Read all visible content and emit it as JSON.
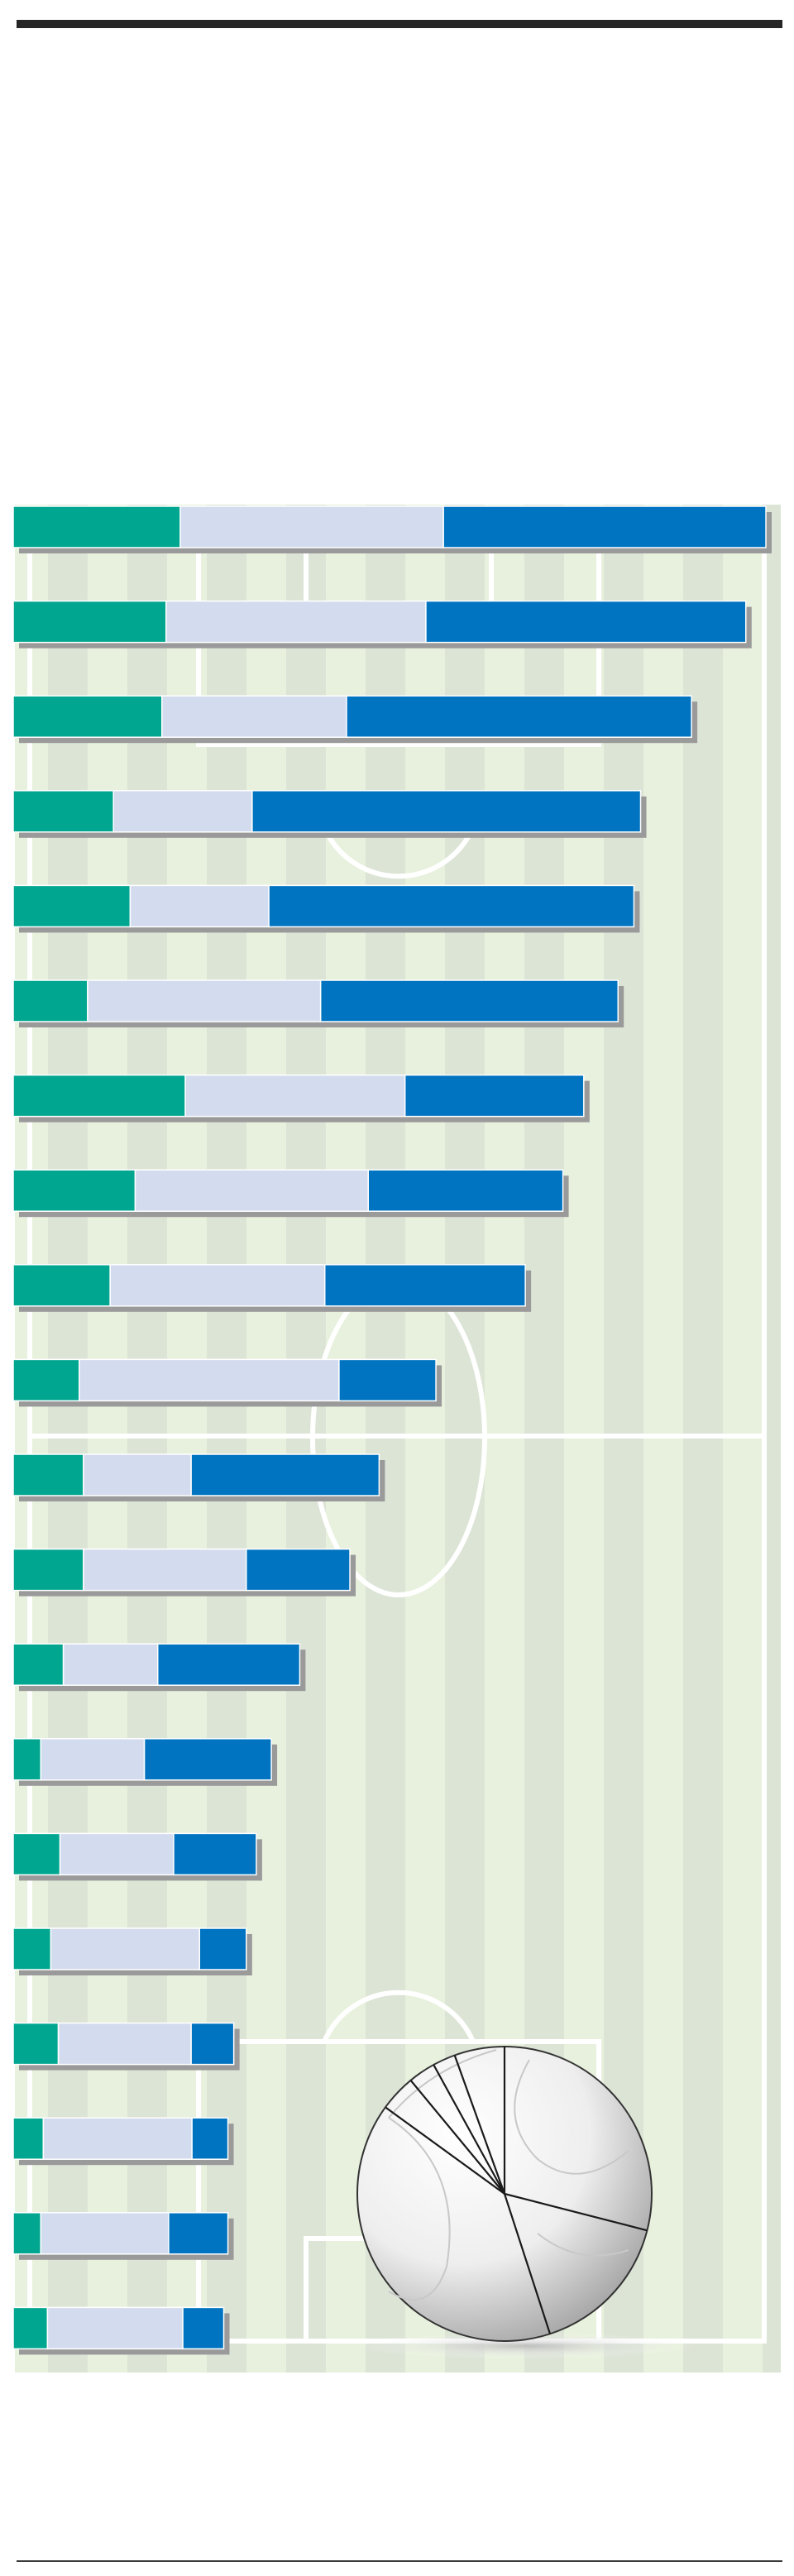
{
  "chart_data": {
    "type": "bar",
    "stacked": true,
    "orientation": "horizontal",
    "title": "",
    "xlabel": "",
    "ylabel": "",
    "legend": "none",
    "grid": false,
    "colors": {
      "segment_1": "#00A690",
      "segment_2": "#D3DBEE",
      "segment_3": "#0073C1",
      "field_light": "#E8F1DD",
      "field_dark": "#DCE4D6",
      "field_lines": "#FFFFFF",
      "shadow": "#9A9A9A"
    },
    "rows": [
      {
        "values": [
          20.0,
          31.5,
          38.6
        ]
      },
      {
        "values": [
          18.3,
          31.1,
          38.3
        ]
      },
      {
        "values": [
          17.8,
          22.1,
          41.3
        ]
      },
      {
        "values": [
          12.0,
          16.6,
          46.5
        ]
      },
      {
        "values": [
          14.0,
          16.6,
          43.7
        ]
      },
      {
        "values": [
          8.9,
          27.9,
          35.6
        ]
      },
      {
        "values": [
          20.6,
          26.3,
          21.4
        ]
      },
      {
        "values": [
          14.6,
          27.9,
          23.3
        ]
      },
      {
        "values": [
          11.6,
          25.7,
          24.0
        ]
      },
      {
        "values": [
          7.9,
          31.1,
          11.6
        ]
      },
      {
        "values": [
          8.4,
          12.9,
          22.5
        ]
      },
      {
        "values": [
          8.4,
          19.5,
          12.4
        ]
      },
      {
        "values": [
          6.0,
          11.3,
          17.0
        ]
      },
      {
        "values": [
          3.3,
          12.4,
          15.2
        ]
      },
      {
        "values": [
          5.6,
          13.6,
          9.9
        ]
      },
      {
        "values": [
          4.5,
          17.8,
          5.6
        ]
      },
      {
        "values": [
          5.4,
          15.9,
          5.1
        ]
      },
      {
        "values": [
          3.6,
          17.8,
          4.3
        ]
      },
      {
        "values": [
          3.3,
          15.3,
          7.1
        ]
      },
      {
        "values": [
          4.1,
          16.2,
          4.9
        ]
      }
    ],
    "pie": {
      "type": "pie",
      "values": [
        29.0,
        16.0,
        40.0,
        4.0,
        3.0,
        2.5,
        5.5
      ],
      "start_angle_deg": 90,
      "direction": "counterclockwise"
    }
  },
  "ball_icon": "soccer-ball-icon"
}
